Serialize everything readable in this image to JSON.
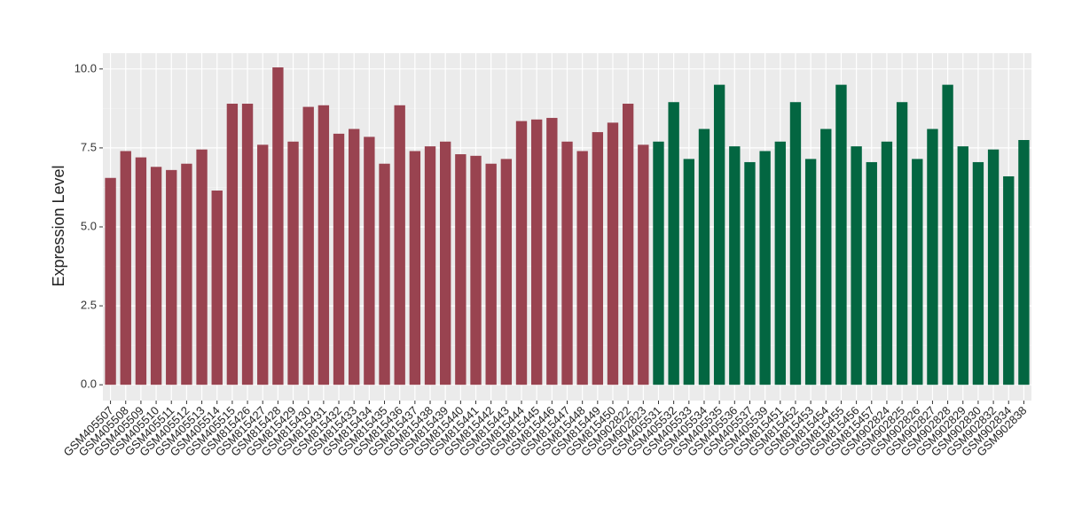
{
  "chart_data": {
    "type": "bar",
    "y_label": "Expression Level",
    "categories": [
      "GSM405507",
      "GSM405508",
      "GSM405509",
      "GSM405510",
      "GSM405511",
      "GSM405512",
      "GSM405513",
      "GSM405514",
      "GSM405515",
      "GSM815426",
      "GSM815427",
      "GSM815428",
      "GSM815429",
      "GSM815430",
      "GSM815431",
      "GSM815432",
      "GSM815433",
      "GSM815434",
      "GSM815435",
      "GSM815436",
      "GSM815437",
      "GSM815438",
      "GSM815439",
      "GSM815440",
      "GSM815441",
      "GSM815442",
      "GSM815443",
      "GSM815444",
      "GSM815445",
      "GSM815446",
      "GSM815447",
      "GSM815448",
      "GSM815449",
      "GSM815450",
      "GSM902822",
      "GSM902823",
      "GSM405531",
      "GSM405532",
      "GSM405533",
      "GSM405534",
      "GSM405535",
      "GSM405536",
      "GSM405537",
      "GSM405539",
      "GSM815451",
      "GSM815452",
      "GSM815453",
      "GSM815454",
      "GSM815455",
      "GSM815456",
      "GSM815457",
      "GSM902824",
      "GSM902825",
      "GSM902826",
      "GSM902827",
      "GSM902828",
      "GSM902829",
      "GSM902830",
      "GSM902832",
      "GSM902834",
      "GSM902838"
    ],
    "values": [
      6.55,
      7.4,
      7.2,
      6.9,
      6.8,
      7.0,
      7.45,
      6.15,
      8.9,
      8.9,
      7.6,
      10.05,
      7.7,
      8.8,
      8.85,
      7.95,
      8.1,
      7.85,
      7.0,
      8.85,
      7.4,
      7.55,
      7.7,
      7.3,
      7.25,
      7.0,
      7.15,
      8.35,
      8.4,
      8.45,
      7.7,
      7.4,
      8.0,
      8.3,
      8.9,
      7.6,
      7.7,
      8.95,
      7.15,
      8.1,
      9.5,
      7.55,
      7.05,
      7.4,
      7.7,
      8.95,
      7.15,
      8.1,
      9.5,
      7.55,
      7.05,
      7.7,
      8.95,
      7.15,
      8.1,
      9.5,
      7.55,
      7.05,
      7.45,
      6.6,
      7.75
    ],
    "colors": [
      "#994350",
      "#994350",
      "#994350",
      "#994350",
      "#994350",
      "#994350",
      "#994350",
      "#994350",
      "#994350",
      "#994350",
      "#994350",
      "#994350",
      "#994350",
      "#994350",
      "#994350",
      "#994350",
      "#994350",
      "#994350",
      "#994350",
      "#994350",
      "#994350",
      "#994350",
      "#994350",
      "#994350",
      "#994350",
      "#994350",
      "#994350",
      "#994350",
      "#994350",
      "#994350",
      "#994350",
      "#994350",
      "#994350",
      "#994350",
      "#994350",
      "#994350",
      "#036641",
      "#036641",
      "#036641",
      "#036641",
      "#036641",
      "#036641",
      "#036641",
      "#036641",
      "#036641",
      "#036641",
      "#036641",
      "#036641",
      "#036641",
      "#036641",
      "#036641",
      "#036641",
      "#036641",
      "#036641",
      "#036641",
      "#036641",
      "#036641",
      "#036641",
      "#036641",
      "#036641",
      "#036641"
    ],
    "ylim": [
      -0.5,
      10.5
    ],
    "yticks": [
      {
        "value": 0,
        "label": "0.0"
      },
      2.5,
      {
        "value": 5,
        "label": "5.0"
      },
      7.5,
      {
        "value": 10,
        "label": "10.0"
      }
    ],
    "grid": true
  }
}
